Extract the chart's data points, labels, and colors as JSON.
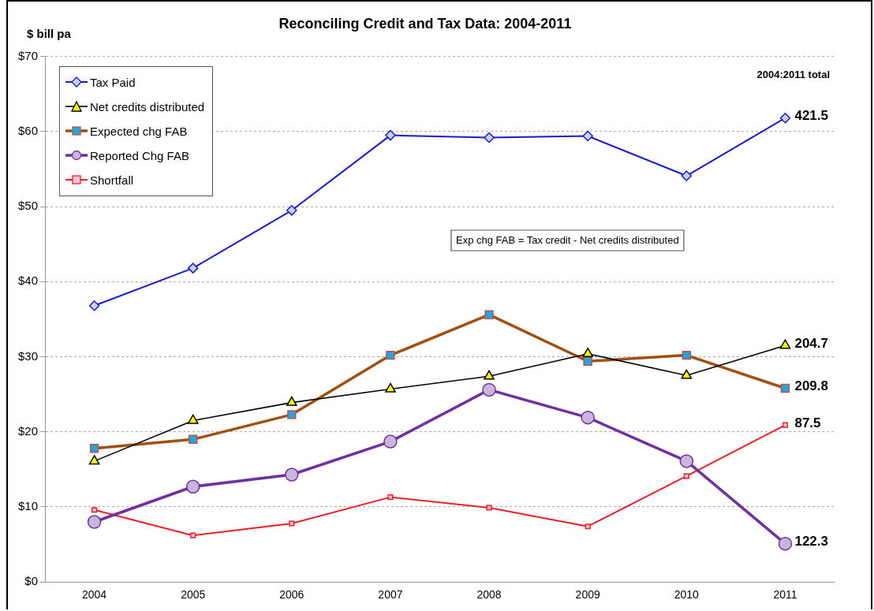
{
  "chart_data": {
    "type": "line",
    "title": "Reconciling Credit and Tax Data: 2004-2011",
    "ylabel": "$ bill pa",
    "categories": [
      "2004",
      "2005",
      "2006",
      "2007",
      "2008",
      "2009",
      "2010",
      "2011"
    ],
    "series": [
      {
        "name": "Tax Paid",
        "color": "#1a1ad0",
        "marker": "diamond",
        "values": [
          36.8,
          41.8,
          49.5,
          59.5,
          59.2,
          59.4,
          54.1,
          61.8
        ]
      },
      {
        "name": "Net credits distributed",
        "color": "#000000",
        "marker": "triangle",
        "values": [
          16.1,
          21.5,
          23.9,
          25.7,
          27.4,
          30.4,
          27.5,
          31.5
        ]
      },
      {
        "name": "Expected chg FAB",
        "color": "#a0500f",
        "marker": "square",
        "values": [
          17.8,
          19.0,
          22.3,
          30.2,
          35.6,
          29.4,
          30.2,
          25.8
        ]
      },
      {
        "name": "Reported Chg FAB",
        "color": "#7030a0",
        "marker": "circle",
        "values": [
          8.0,
          12.7,
          14.3,
          18.7,
          25.6,
          21.9,
          16.1,
          5.1
        ]
      },
      {
        "name": "Shortfall",
        "color": "#e8202a",
        "marker": "square",
        "values": [
          9.6,
          6.2,
          7.8,
          11.3,
          9.9,
          7.4,
          14.1,
          20.9
        ]
      }
    ],
    "ylim": [
      0,
      70
    ],
    "yticks": [
      {
        "value": 0,
        "label": "$0"
      },
      {
        "value": 10,
        "label": "$10"
      },
      {
        "value": 20,
        "label": "$20"
      },
      {
        "value": 30,
        "label": "$30"
      },
      {
        "value": 40,
        "label": "$40"
      },
      {
        "value": 50,
        "label": "$50"
      },
      {
        "value": 60,
        "label": "$60"
      },
      {
        "value": 70,
        "label": "$70"
      }
    ],
    "grid": "y",
    "legend": "top left",
    "line_style": "solid",
    "annotations": [
      "2004:2011 total",
      "Exp chg FAB = Tax credit - Net credits distributed",
      {
        "text": "421.5",
        "x": "2011",
        "y": 61.8
      },
      {
        "text": "204.7",
        "x": "2011",
        "y": 31.5
      },
      {
        "text": "209.8",
        "x": "2011",
        "y": 25.8
      },
      {
        "text": "87.5",
        "x": "2011",
        "y": 20.9
      },
      {
        "text": "122.3",
        "x": "2011",
        "y": 5.1
      }
    ]
  }
}
